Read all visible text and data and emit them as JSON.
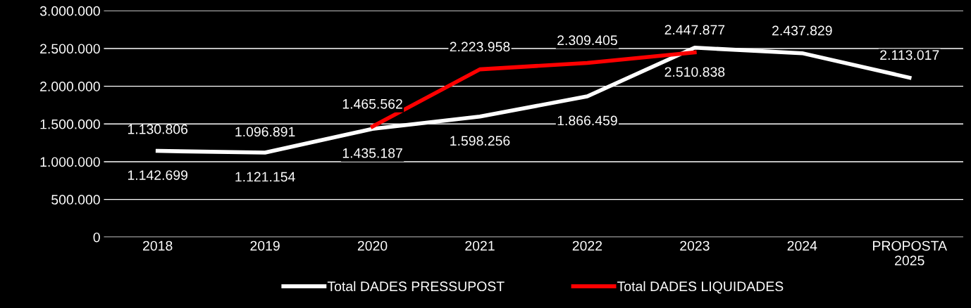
{
  "chart_data": {
    "type": "line",
    "categories": [
      "2018",
      "2019",
      "2020",
      "2021",
      "2022",
      "2023",
      "2024",
      "PROPOSTA\n2025"
    ],
    "series": [
      {
        "name": "Total DADES PRESSUPOST",
        "color": "#ffffff",
        "values": [
          1142699,
          1121154,
          1435187,
          1598256,
          1866459,
          2510838,
          2437829,
          2113017
        ],
        "value_labels": [
          "1.142.699",
          "1.121.154",
          "1.435.187",
          "1.598.256",
          "1.866.459",
          "2.510.838",
          "2.437.829",
          "2.113.017"
        ]
      },
      {
        "name": "Total DADES LIQUIDADES",
        "color": "#ff0000",
        "values": [
          null,
          null,
          1465562,
          2223958,
          2309405,
          2447877,
          null,
          null
        ],
        "value_labels": [
          null,
          null,
          "1.465.562",
          "2.223.958",
          "2.309.405",
          "2.447.877",
          null,
          null
        ]
      }
    ],
    "annotations": [
      {
        "text": "1.130.806",
        "x": "2018",
        "y": 1130806
      },
      {
        "text": "1.096.891",
        "x": "2019",
        "y": 1096891
      }
    ],
    "ylim": [
      0,
      3000000
    ],
    "yticks": [
      {
        "value": 0,
        "label": "0"
      },
      {
        "value": 500000,
        "label": "500.000"
      },
      {
        "value": 1000000,
        "label": "1.000.000"
      },
      {
        "value": 1500000,
        "label": "1.500.000"
      },
      {
        "value": 2000000,
        "label": "2.000.000"
      },
      {
        "value": 2500000,
        "label": "2.500.000"
      },
      {
        "value": 3000000,
        "label": "3.000.000"
      }
    ],
    "grid": "y",
    "legend": "bottom",
    "marker": "none",
    "line_style": "solid"
  }
}
